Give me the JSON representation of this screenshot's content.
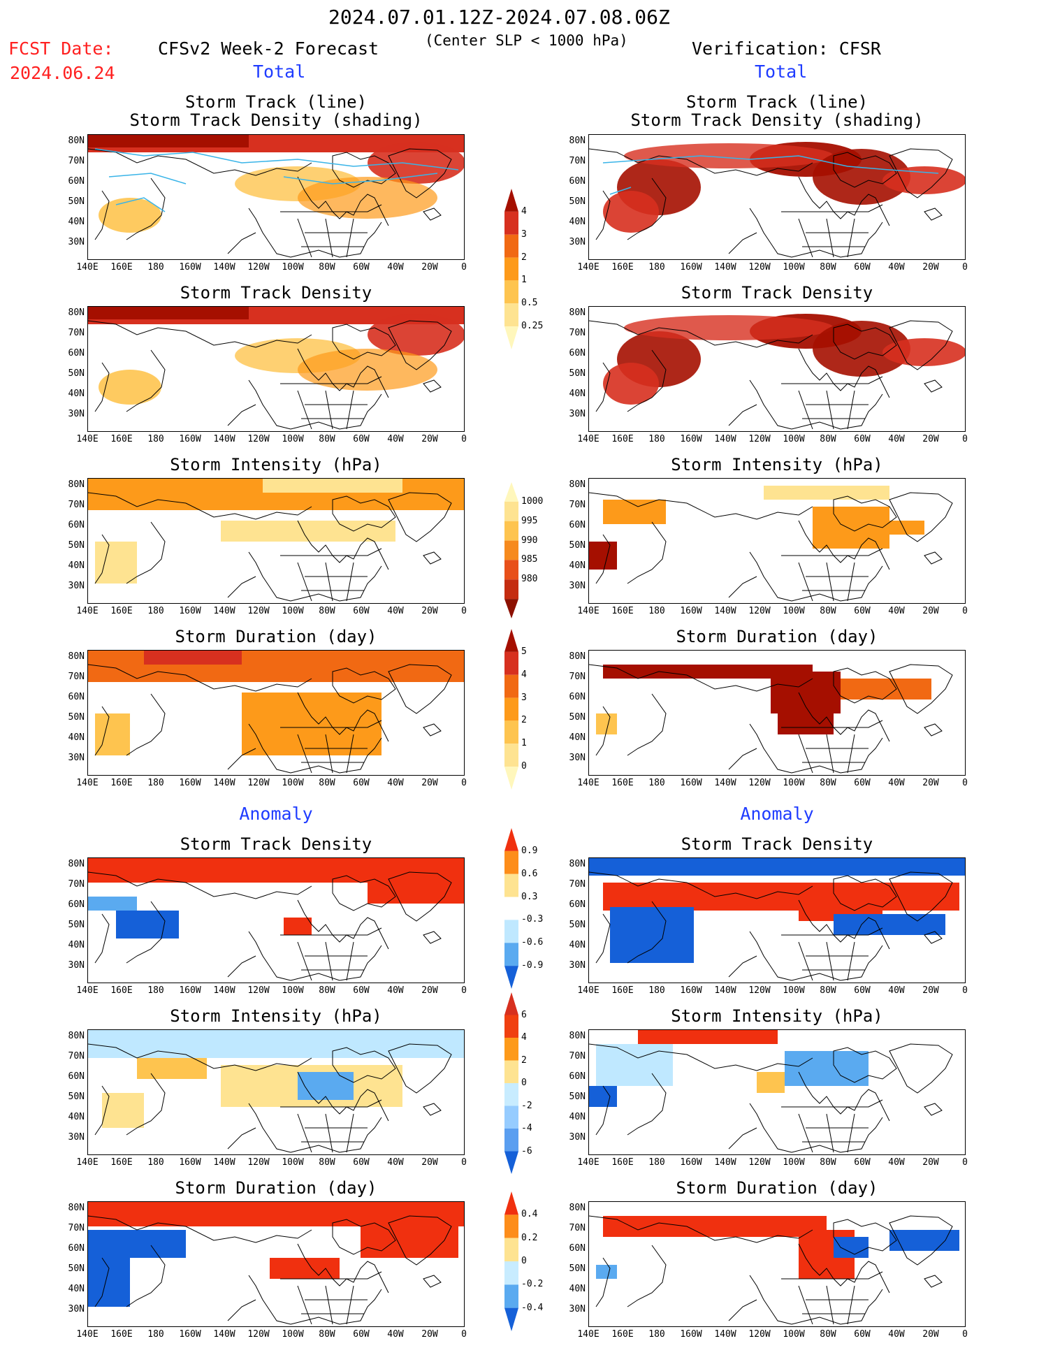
{
  "header": {
    "date_range": "2024.07.01.12Z-2024.07.08.06Z",
    "subtitle": "(Center SLP < 1000 hPa)",
    "fcst_label": "FCST Date:",
    "fcst_date": "2024.06.24",
    "left_title": "CFSv2 Week-2 Forecast",
    "right_title": "Verification: CFSR",
    "left_total": "Total",
    "right_total": "Total",
    "left_anomaly": "Anomaly",
    "right_anomaly": "Anomaly"
  },
  "panel_titles": {
    "track_line": "Storm Track (line)",
    "track_shading": "Storm Track Density (shading)",
    "density": "Storm Track Density",
    "intensity": "Storm Intensity (hPa)",
    "duration": "Storm Duration (day)"
  },
  "axes": {
    "lat_labels": [
      "80N",
      "70N",
      "60N",
      "50N",
      "40N",
      "30N"
    ],
    "lon_labels": [
      "140E",
      "160E",
      "180",
      "160W",
      "140W",
      "120W",
      "100W",
      "80W",
      "60W",
      "40W",
      "20W",
      "0"
    ]
  },
  "colorbars": {
    "density_total": {
      "labels": [
        "4",
        "3",
        "2",
        "1",
        "0.5",
        "0.25"
      ],
      "colors": [
        "#a50f00",
        "#d7301f",
        "#f16913",
        "#fd9a1a",
        "#fec44f",
        "#fee391",
        "#fff7bc"
      ]
    },
    "intensity_total": {
      "labels": [
        "1000",
        "995",
        "990",
        "985",
        "980"
      ],
      "colors": [
        "#fff7bc",
        "#fee391",
        "#fec44f",
        "#f68a1e",
        "#e8501a",
        "#c42c10",
        "#8c1000"
      ]
    },
    "duration_total": {
      "labels": [
        "5",
        "4",
        "3",
        "2",
        "1",
        "0"
      ],
      "colors": [
        "#a50f00",
        "#d7301f",
        "#f16913",
        "#fd9a1a",
        "#fec44f",
        "#fee391",
        "#fff7bc"
      ]
    },
    "density_anom": {
      "labels": [
        "0.9",
        "0.6",
        "0.3",
        "-0.3",
        "-0.6",
        "-0.9"
      ],
      "colors": [
        "#f0300f",
        "#fd8d1a",
        "#fee391",
        "#ffffff",
        "#bfe8ff",
        "#5aaaf0",
        "#1560d8"
      ]
    },
    "intensity_anom": {
      "labels": [
        "6",
        "4",
        "2",
        "0",
        "-2",
        "-4",
        "-6"
      ],
      "colors": [
        "#d7301f",
        "#f04010",
        "#fd9a1a",
        "#fee391",
        "#c8ecff",
        "#96ccff",
        "#5a9ef0",
        "#1560d8"
      ]
    },
    "duration_anom": {
      "labels": [
        "0.4",
        "0.2",
        "0",
        "-0.2",
        "-0.4"
      ],
      "colors": [
        "#f0300f",
        "#fd8d1a",
        "#fee391",
        "#c8ecff",
        "#5aaaf0",
        "#1560d8"
      ]
    }
  },
  "colors": {
    "track_line": "#39b4e8",
    "label_blue": "#1f3cff",
    "label_red": "#ff2020"
  }
}
